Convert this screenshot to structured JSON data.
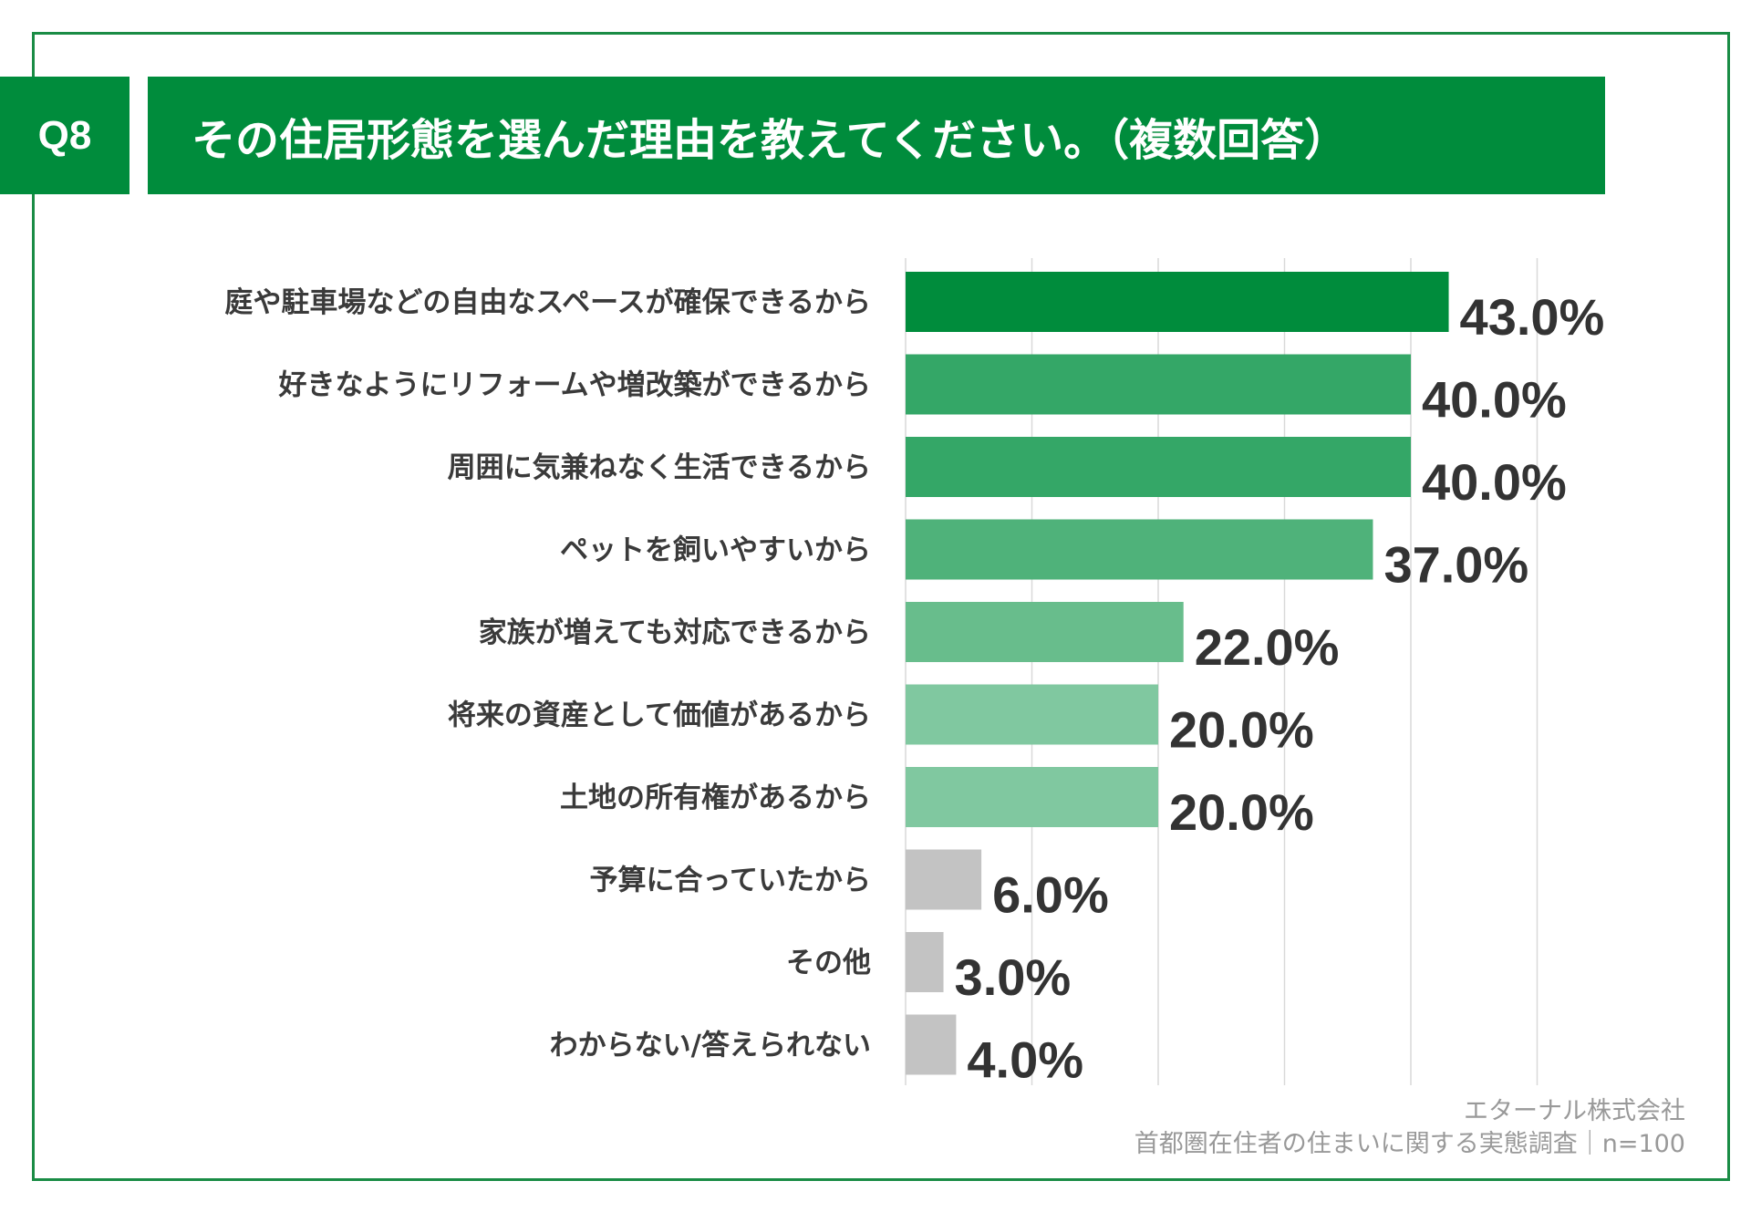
{
  "header": {
    "question_number": "Q8",
    "question": "その住居形態を選んだ理由を教えてください。（複数回答）"
  },
  "footer": {
    "company": "エターナル株式会社",
    "survey": "首都圏在住者の住まいに関する実態調査｜n=100"
  },
  "colors": {
    "accent": "#008c3c",
    "bar_shades": [
      "#008c3c",
      "#34a767",
      "#34a767",
      "#4fb27a",
      "#68bd8c",
      "#80c8a0",
      "#80c8a0"
    ],
    "other": "#c3c3c3"
  },
  "chart_data": {
    "type": "bar",
    "orientation": "horizontal",
    "categories": [
      "庭や駐車場などの自由なスペースが確保できるから",
      "好きなようにリフォームや増改築ができるから",
      "周囲に気兼ねなく生活できるから",
      "ペットを飼いやすいから",
      "家族が増えても対応できるから",
      "将来の資産として価値があるから",
      "土地の所有権があるから",
      "予算に合っていたから",
      "その他",
      "わからない/答えられない"
    ],
    "values": [
      43.0,
      40.0,
      40.0,
      37.0,
      22.0,
      20.0,
      20.0,
      6.0,
      3.0,
      4.0
    ],
    "value_labels": [
      "43.0%",
      "40.0%",
      "40.0%",
      "37.0%",
      "22.0%",
      "20.0%",
      "20.0%",
      "6.0%",
      "3.0%",
      "4.0%"
    ],
    "xlim": [
      0,
      50
    ],
    "grid": true,
    "grid_step": 10,
    "unit": "%"
  }
}
